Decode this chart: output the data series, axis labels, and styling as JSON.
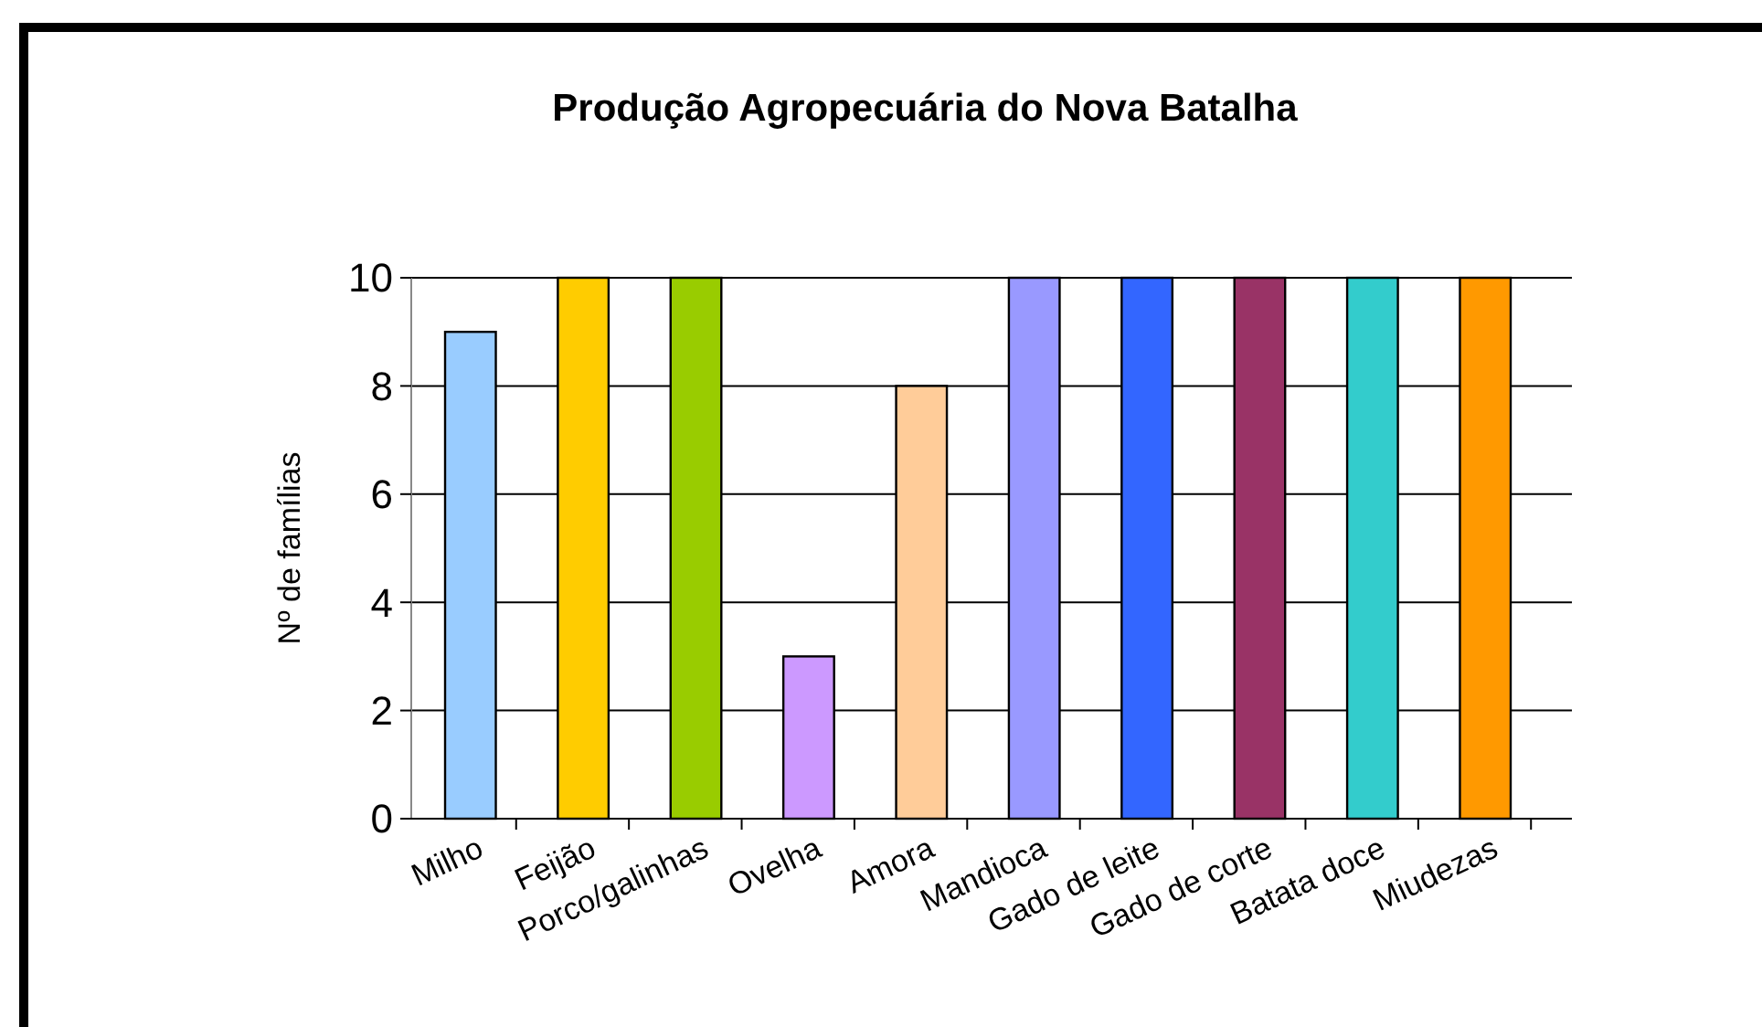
{
  "chart_data": {
    "type": "bar",
    "title": "Produção Agropecuária do Nova Batalha",
    "ylabel": "Nº de famílias",
    "categories": [
      "Milho",
      "Feijão",
      "Porco/galinhas",
      "Ovelha",
      "Amora",
      "Mandioca",
      "Gado de leite",
      "Gado de corte",
      "Batata doce",
      "Miudezas"
    ],
    "values": [
      9,
      10,
      10,
      3,
      8,
      10,
      10,
      10,
      10,
      10
    ],
    "colors": [
      "#99ccff",
      "#ffcc00",
      "#99cc00",
      "#cc99ff",
      "#ffcc99",
      "#9999ff",
      "#3366ff",
      "#993366",
      "#33cccc",
      "#ff9900"
    ],
    "ylim": [
      0,
      10
    ],
    "yticks": [
      0,
      2,
      4,
      6,
      8,
      10
    ],
    "grid": "y"
  }
}
